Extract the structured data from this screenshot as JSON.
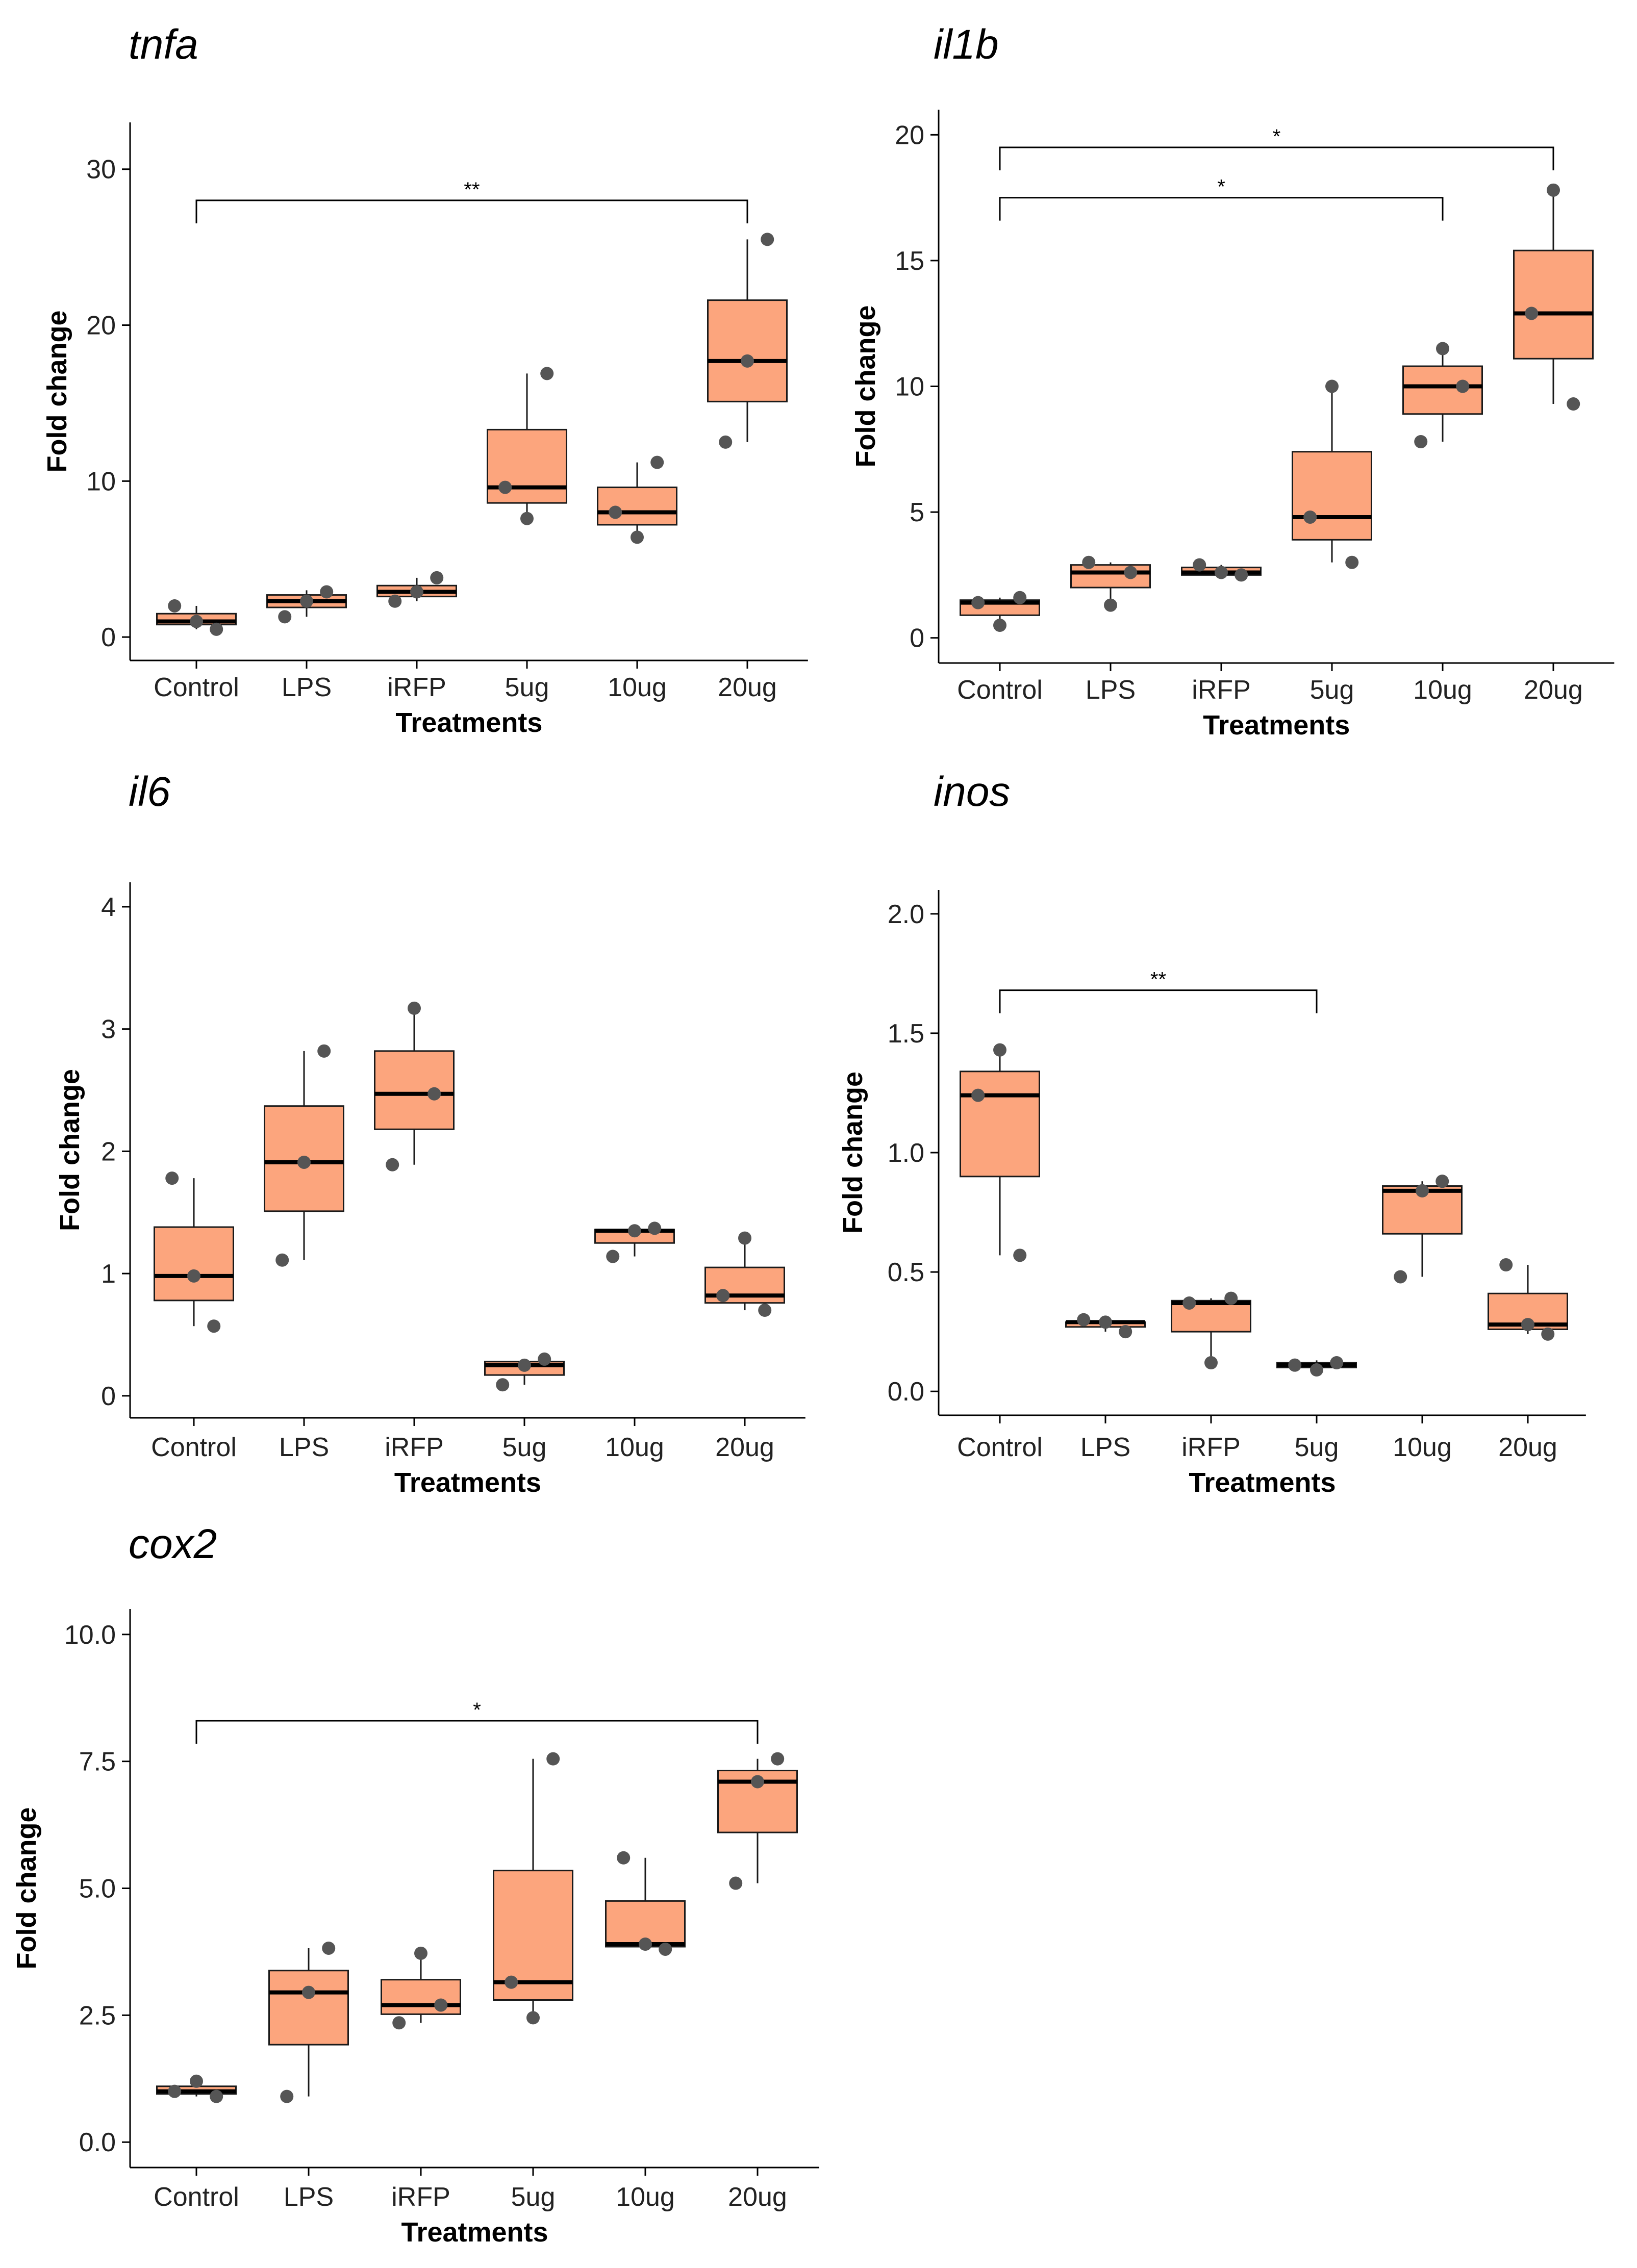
{
  "colors": {
    "box_fill": "#fca57d",
    "box_stroke": "#1a1a1a",
    "median": "#000000",
    "point": "#555555",
    "axis": "#000000"
  },
  "chart_data": [
    {
      "type": "boxplot",
      "title": "tnfa",
      "xlabel": "Treatments",
      "ylabel": "Fold change",
      "categories": [
        "Control",
        "LPS",
        "iRFP",
        "5ug",
        "10ug",
        "20ug"
      ],
      "yticks": [
        0,
        10,
        20,
        30
      ],
      "ytick_labels": [
        "0",
        "10",
        "20",
        "30"
      ],
      "ylim": [
        -1.5,
        33
      ],
      "boxes": [
        {
          "lower": 0.5,
          "q1": 0.8,
          "median": 1.0,
          "q3": 1.5,
          "upper": 2.0
        },
        {
          "lower": 1.3,
          "q1": 1.9,
          "median": 2.3,
          "q3": 2.7,
          "upper": 3.0
        },
        {
          "lower": 2.3,
          "q1": 2.6,
          "median": 2.9,
          "q3": 3.3,
          "upper": 3.8
        },
        {
          "lower": 7.6,
          "q1": 8.6,
          "median": 9.6,
          "q3": 13.3,
          "upper": 16.9
        },
        {
          "lower": 6.4,
          "q1": 7.2,
          "median": 8.0,
          "q3": 9.6,
          "upper": 11.2
        },
        {
          "lower": 12.5,
          "q1": 15.1,
          "median": 17.7,
          "q3": 21.6,
          "upper": 25.5
        }
      ],
      "points": [
        [
          2.0,
          1.0,
          0.5
        ],
        [
          1.3,
          2.3,
          2.9
        ],
        [
          2.3,
          2.9,
          3.8
        ],
        [
          9.6,
          7.6,
          16.9
        ],
        [
          8.0,
          6.4,
          11.2
        ],
        [
          12.5,
          17.7,
          25.5
        ]
      ],
      "brackets": [
        {
          "from": 0,
          "to": 5,
          "y": 28,
          "label": "**"
        }
      ]
    },
    {
      "type": "boxplot",
      "title": "il1b",
      "xlabel": "Treatments",
      "ylabel": "Fold change",
      "categories": [
        "Control",
        "LPS",
        "iRFP",
        "5ug",
        "10ug",
        "20ug"
      ],
      "yticks": [
        0,
        5,
        10,
        15,
        20
      ],
      "ytick_labels": [
        "0",
        "5",
        "10",
        "15",
        "20"
      ],
      "ylim": [
        -1,
        21
      ],
      "boxes": [
        {
          "lower": 0.5,
          "q1": 0.9,
          "median": 1.4,
          "q3": 1.5,
          "upper": 1.6
        },
        {
          "lower": 1.3,
          "q1": 2.0,
          "median": 2.6,
          "q3": 2.9,
          "upper": 3.0
        },
        {
          "lower": 2.5,
          "q1": 2.5,
          "median": 2.6,
          "q3": 2.8,
          "upper": 2.9
        },
        {
          "lower": 3.0,
          "q1": 3.9,
          "median": 4.8,
          "q3": 7.4,
          "upper": 10.0
        },
        {
          "lower": 7.8,
          "q1": 8.9,
          "median": 10.0,
          "q3": 10.8,
          "upper": 11.5
        },
        {
          "lower": 9.3,
          "q1": 11.1,
          "median": 12.9,
          "q3": 15.4,
          "upper": 17.8
        }
      ],
      "points": [
        [
          1.4,
          0.5,
          1.6
        ],
        [
          3.0,
          1.3,
          2.6
        ],
        [
          2.9,
          2.6,
          2.5
        ],
        [
          4.8,
          10.0,
          3.0
        ],
        [
          7.8,
          11.5,
          10.0
        ],
        [
          12.9,
          17.8,
          9.3
        ]
      ],
      "brackets": [
        {
          "from": 0,
          "to": 5,
          "y": 19.5,
          "label": "*"
        },
        {
          "from": 0,
          "to": 4,
          "y": 17.5,
          "label": "*"
        }
      ]
    },
    {
      "type": "boxplot",
      "title": "il6",
      "xlabel": "Treatments",
      "ylabel": "Fold change",
      "categories": [
        "Control",
        "LPS",
        "iRFP",
        "5ug",
        "10ug",
        "20ug"
      ],
      "yticks": [
        0,
        1,
        2,
        3,
        4
      ],
      "ytick_labels": [
        "0",
        "1",
        "2",
        "3",
        "4"
      ],
      "ylim": [
        -0.18,
        4.2
      ],
      "boxes": [
        {
          "lower": 0.57,
          "q1": 0.78,
          "median": 0.98,
          "q3": 1.38,
          "upper": 1.78
        },
        {
          "lower": 1.11,
          "q1": 1.51,
          "median": 1.91,
          "q3": 2.37,
          "upper": 2.82
        },
        {
          "lower": 1.89,
          "q1": 2.18,
          "median": 2.47,
          "q3": 2.82,
          "upper": 3.17
        },
        {
          "lower": 0.09,
          "q1": 0.17,
          "median": 0.25,
          "q3": 0.28,
          "upper": 0.3
        },
        {
          "lower": 1.14,
          "q1": 1.25,
          "median": 1.35,
          "q3": 1.36,
          "upper": 1.37
        },
        {
          "lower": 0.7,
          "q1": 0.76,
          "median": 0.82,
          "q3": 1.05,
          "upper": 1.29
        }
      ],
      "points": [
        [
          1.78,
          0.98,
          0.57
        ],
        [
          1.11,
          1.91,
          2.82
        ],
        [
          1.89,
          3.17,
          2.47
        ],
        [
          0.09,
          0.25,
          0.3
        ],
        [
          1.14,
          1.35,
          1.37
        ],
        [
          0.82,
          1.29,
          0.7
        ]
      ],
      "brackets": []
    },
    {
      "type": "boxplot",
      "title": "inos",
      "xlabel": "Treatments",
      "ylabel": "Fold change",
      "categories": [
        "Control",
        "LPS",
        "iRFP",
        "5ug",
        "10ug",
        "20ug"
      ],
      "yticks": [
        0,
        0.5,
        1.0,
        1.5,
        2.0
      ],
      "ytick_labels": [
        "0.0",
        "0.5",
        "1.0",
        "1.5",
        "2.0"
      ],
      "ylim": [
        -0.1,
        2.1
      ],
      "boxes": [
        {
          "lower": 0.57,
          "q1": 0.9,
          "median": 1.24,
          "q3": 1.34,
          "upper": 1.43
        },
        {
          "lower": 0.25,
          "q1": 0.27,
          "median": 0.29,
          "q3": 0.29,
          "upper": 0.3
        },
        {
          "lower": 0.12,
          "q1": 0.25,
          "median": 0.37,
          "q3": 0.38,
          "upper": 0.39
        },
        {
          "lower": 0.09,
          "q1": 0.1,
          "median": 0.11,
          "q3": 0.12,
          "upper": 0.13
        },
        {
          "lower": 0.48,
          "q1": 0.66,
          "median": 0.84,
          "q3": 0.86,
          "upper": 0.88
        },
        {
          "lower": 0.24,
          "q1": 0.26,
          "median": 0.28,
          "q3": 0.41,
          "upper": 0.53
        }
      ],
      "points": [
        [
          1.24,
          1.43,
          0.57
        ],
        [
          0.3,
          0.29,
          0.25
        ],
        [
          0.37,
          0.12,
          0.39
        ],
        [
          0.11,
          0.09,
          0.12
        ],
        [
          0.48,
          0.84,
          0.88
        ],
        [
          0.53,
          0.28,
          0.24
        ]
      ],
      "brackets": [
        {
          "from": 0,
          "to": 3,
          "y": 1.68,
          "label": "**"
        }
      ]
    },
    {
      "type": "boxplot",
      "title": "cox2",
      "xlabel": "Treatments",
      "ylabel": "Fold change",
      "categories": [
        "Control",
        "LPS",
        "iRFP",
        "5ug",
        "10ug",
        "20ug"
      ],
      "yticks": [
        0,
        2.5,
        5,
        7.5,
        10
      ],
      "ytick_labels": [
        "0.0",
        "2.5",
        "5.0",
        "7.5",
        "10.0"
      ],
      "ylim": [
        -0.5,
        10.5
      ],
      "boxes": [
        {
          "lower": 0.9,
          "q1": 0.95,
          "median": 1.0,
          "q3": 1.1,
          "upper": 1.2
        },
        {
          "lower": 0.9,
          "q1": 1.92,
          "median": 2.95,
          "q3": 3.38,
          "upper": 3.82
        },
        {
          "lower": 2.35,
          "q1": 2.52,
          "median": 2.7,
          "q3": 3.2,
          "upper": 3.72
        },
        {
          "lower": 2.45,
          "q1": 2.8,
          "median": 3.15,
          "q3": 5.35,
          "upper": 7.55
        },
        {
          "lower": 3.8,
          "q1": 3.85,
          "median": 3.9,
          "q3": 4.75,
          "upper": 5.6
        },
        {
          "lower": 5.1,
          "q1": 6.1,
          "median": 7.1,
          "q3": 7.32,
          "upper": 7.55
        }
      ],
      "points": [
        [
          1.0,
          1.2,
          0.9
        ],
        [
          0.9,
          2.95,
          3.82
        ],
        [
          2.35,
          3.72,
          2.7
        ],
        [
          3.15,
          2.45,
          7.55
        ],
        [
          5.6,
          3.9,
          3.8
        ],
        [
          5.1,
          7.1,
          7.55
        ]
      ],
      "brackets": [
        {
          "from": 0,
          "to": 5,
          "y": 8.3,
          "label": "*"
        }
      ]
    }
  ]
}
